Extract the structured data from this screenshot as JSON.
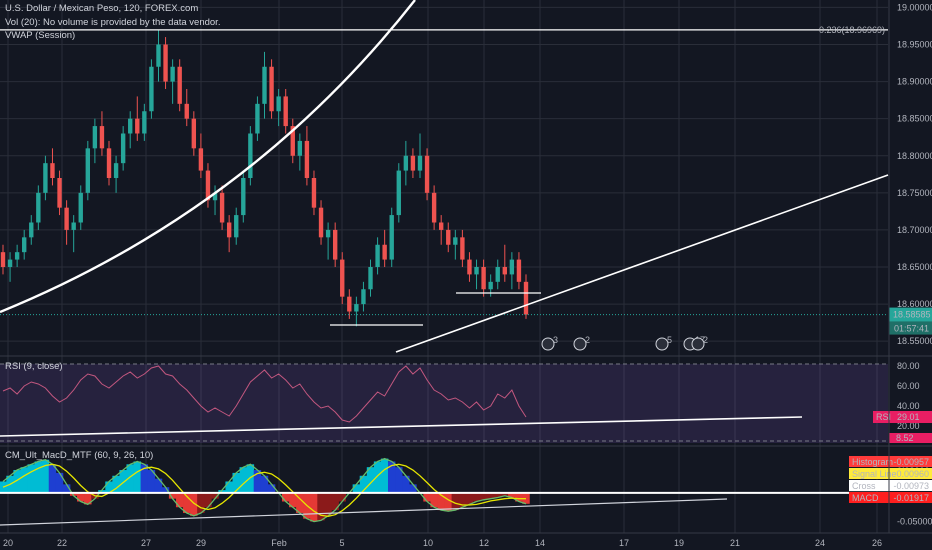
{
  "chart_data": [
    {
      "type": "candlestick",
      "title": "U.S. Dollar / Mexican Peso, 120, FOREX.com",
      "indicators": [
        "Vol (20): No volume is provided by the data vendor.",
        "VWAP (Session)"
      ],
      "y_ticks": [
        "19.00000",
        "18.95000",
        "18.90000",
        "18.85000",
        "18.80000",
        "18.75000",
        "18.70000",
        "18.65000",
        "18.60000",
        "18.55000"
      ],
      "ylim": [
        18.53,
        19.01
      ],
      "x_ticks": [
        "20",
        "22",
        "27",
        "29",
        "Feb",
        "5",
        "10",
        "12",
        "14",
        "17",
        "19",
        "21",
        "24",
        "26"
      ],
      "last_price": "18.58585",
      "countdown": "01:57:41",
      "fib_label": "0.236(18.96969)",
      "fib_level": 18.9697,
      "colors": {
        "up": "#26a69a",
        "down": "#ef5350",
        "bg": "#131722",
        "grid": "#2a2e39"
      },
      "ohlc": [
        [
          18.67,
          18.68,
          18.64,
          18.65
        ],
        [
          18.65,
          18.67,
          18.63,
          18.66
        ],
        [
          18.66,
          18.68,
          18.65,
          18.67
        ],
        [
          18.67,
          18.7,
          18.66,
          18.69
        ],
        [
          18.69,
          18.72,
          18.68,
          18.71
        ],
        [
          18.71,
          18.76,
          18.7,
          18.75
        ],
        [
          18.75,
          18.8,
          18.74,
          18.79
        ],
        [
          18.79,
          18.81,
          18.76,
          18.77
        ],
        [
          18.77,
          18.78,
          18.72,
          18.73
        ],
        [
          18.73,
          18.74,
          18.68,
          18.7
        ],
        [
          18.7,
          18.72,
          18.67,
          18.71
        ],
        [
          18.71,
          18.76,
          18.7,
          18.75
        ],
        [
          18.75,
          18.82,
          18.74,
          18.81
        ],
        [
          18.81,
          18.85,
          18.79,
          18.84
        ],
        [
          18.84,
          18.86,
          18.8,
          18.81
        ],
        [
          18.81,
          18.82,
          18.76,
          18.77
        ],
        [
          18.77,
          18.8,
          18.75,
          18.79
        ],
        [
          18.79,
          18.84,
          18.78,
          18.83
        ],
        [
          18.83,
          18.86,
          18.81,
          18.85
        ],
        [
          18.85,
          18.88,
          18.82,
          18.83
        ],
        [
          18.83,
          18.87,
          18.82,
          18.86
        ],
        [
          18.86,
          18.93,
          18.85,
          18.92
        ],
        [
          18.92,
          18.97,
          18.9,
          18.95
        ],
        [
          18.95,
          18.96,
          18.89,
          18.9
        ],
        [
          18.9,
          18.93,
          18.87,
          18.92
        ],
        [
          18.92,
          18.93,
          18.86,
          18.87
        ],
        [
          18.87,
          18.89,
          18.84,
          18.85
        ],
        [
          18.85,
          18.86,
          18.8,
          18.81
        ],
        [
          18.81,
          18.83,
          18.77,
          18.78
        ],
        [
          18.78,
          18.79,
          18.73,
          18.74
        ],
        [
          18.74,
          18.76,
          18.72,
          18.75
        ],
        [
          18.75,
          18.76,
          18.7,
          18.71
        ],
        [
          18.71,
          18.72,
          18.67,
          18.69
        ],
        [
          18.69,
          18.73,
          18.68,
          18.72
        ],
        [
          18.72,
          18.78,
          18.71,
          18.77
        ],
        [
          18.77,
          18.84,
          18.76,
          18.83
        ],
        [
          18.83,
          18.88,
          18.82,
          18.87
        ],
        [
          18.87,
          18.94,
          18.85,
          18.92
        ],
        [
          18.92,
          18.93,
          18.85,
          18.86
        ],
        [
          18.86,
          18.89,
          18.84,
          18.88
        ],
        [
          18.88,
          18.89,
          18.83,
          18.84
        ],
        [
          18.84,
          18.85,
          18.79,
          18.8
        ],
        [
          18.8,
          18.83,
          18.78,
          18.82
        ],
        [
          18.82,
          18.84,
          18.76,
          18.77
        ],
        [
          18.77,
          18.78,
          18.72,
          18.73
        ],
        [
          18.73,
          18.74,
          18.68,
          18.69
        ],
        [
          18.69,
          18.71,
          18.66,
          18.7
        ],
        [
          18.7,
          18.71,
          18.65,
          18.66
        ],
        [
          18.66,
          18.67,
          18.6,
          18.61
        ],
        [
          18.61,
          18.62,
          18.58,
          18.59
        ],
        [
          18.59,
          18.61,
          18.57,
          18.6
        ],
        [
          18.6,
          18.63,
          18.59,
          18.62
        ],
        [
          18.62,
          18.66,
          18.61,
          18.65
        ],
        [
          18.65,
          18.69,
          18.64,
          18.68
        ],
        [
          18.68,
          18.7,
          18.65,
          18.66
        ],
        [
          18.66,
          18.73,
          18.65,
          18.72
        ],
        [
          18.72,
          18.79,
          18.71,
          18.78
        ],
        [
          18.78,
          18.82,
          18.76,
          18.8
        ],
        [
          18.8,
          18.81,
          18.77,
          18.78
        ],
        [
          18.78,
          18.83,
          18.77,
          18.8
        ],
        [
          18.8,
          18.81,
          18.74,
          18.75
        ],
        [
          18.75,
          18.76,
          18.7,
          18.71
        ],
        [
          18.71,
          18.72,
          18.68,
          18.7
        ],
        [
          18.7,
          18.71,
          18.67,
          18.68
        ],
        [
          18.68,
          18.7,
          18.66,
          18.69
        ],
        [
          18.69,
          18.7,
          18.65,
          18.66
        ],
        [
          18.66,
          18.67,
          18.63,
          18.64
        ],
        [
          18.64,
          18.66,
          18.62,
          18.65
        ],
        [
          18.65,
          18.66,
          18.61,
          18.62
        ],
        [
          18.62,
          18.64,
          18.61,
          18.63
        ],
        [
          18.63,
          18.66,
          18.62,
          18.65
        ],
        [
          18.65,
          18.68,
          18.63,
          18.64
        ],
        [
          18.64,
          18.67,
          18.62,
          18.66
        ],
        [
          18.66,
          18.67,
          18.62,
          18.63
        ],
        [
          18.63,
          18.64,
          18.58,
          18.5859
        ]
      ]
    },
    {
      "type": "line",
      "title": "RSI (9, close)",
      "y_ticks": [
        "80.00",
        "60.00",
        "40.00",
        "20.00"
      ],
      "ylim": [
        3,
        88
      ],
      "rsi_value": "29.01",
      "rsi_badge": "RSI",
      "low_readout": "8.52",
      "color": "#c2577f",
      "band_color": "#7e57c2",
      "values": [
        55,
        58,
        52,
        60,
        64,
        62,
        58,
        50,
        44,
        48,
        56,
        66,
        72,
        70,
        62,
        58,
        64,
        70,
        74,
        68,
        72,
        78,
        80,
        72,
        70,
        62,
        56,
        48,
        40,
        34,
        38,
        34,
        30,
        40,
        52,
        64,
        70,
        76,
        68,
        72,
        66,
        58,
        62,
        52,
        44,
        38,
        40,
        34,
        26,
        24,
        30,
        38,
        46,
        54,
        50,
        62,
        74,
        80,
        72,
        78,
        66,
        56,
        52,
        46,
        48,
        44,
        38,
        44,
        36,
        40,
        52,
        48,
        56,
        40,
        29
      ]
    },
    {
      "type": "histogram",
      "title": "CM_Ult_MacD_MTF (60, 9, 26, 10)",
      "y_ticks": [
        "0.05000",
        "-0.05000"
      ],
      "ylim": [
        -0.07,
        0.075
      ],
      "legend_items": [
        {
          "name": "Histogram",
          "value": "-0.00957",
          "color": "#ff3b3b"
        },
        {
          "name": "Signal Line",
          "value": "-0.00960",
          "color": "#ffeb3b"
        },
        {
          "name": "Cross",
          "value": "-0.00973",
          "color": "#ffffff"
        },
        {
          "name": "MACD",
          "value": "-0.01917",
          "color": "#ff1f1f"
        }
      ],
      "macd": [
        0.02,
        0.03,
        0.04,
        0.045,
        0.05,
        0.055,
        0.058,
        0.05,
        0.035,
        0.015,
        -0.005,
        -0.015,
        -0.02,
        -0.01,
        0.005,
        0.02,
        0.03,
        0.04,
        0.05,
        0.055,
        0.05,
        0.04,
        0.025,
        0.01,
        -0.01,
        -0.025,
        -0.035,
        -0.04,
        -0.035,
        -0.025,
        -0.01,
        0.005,
        0.02,
        0.035,
        0.045,
        0.05,
        0.04,
        0.03,
        0.015,
        0.0,
        -0.015,
        -0.025,
        -0.035,
        -0.045,
        -0.05,
        -0.048,
        -0.04,
        -0.03,
        -0.015,
        0.0,
        0.015,
        0.03,
        0.045,
        0.055,
        0.06,
        0.055,
        0.045,
        0.03,
        0.015,
        0.0,
        -0.015,
        -0.025,
        -0.03,
        -0.032,
        -0.03,
        -0.025,
        -0.02,
        -0.015,
        -0.012,
        -0.01,
        -0.008,
        -0.005,
        -0.008,
        -0.015,
        -0.019
      ],
      "signal": [
        0.01,
        0.015,
        0.022,
        0.03,
        0.037,
        0.043,
        0.048,
        0.05,
        0.047,
        0.038,
        0.026,
        0.013,
        0.002,
        -0.005,
        -0.006,
        0.0,
        0.008,
        0.018,
        0.028,
        0.037,
        0.043,
        0.045,
        0.042,
        0.034,
        0.022,
        0.008,
        -0.006,
        -0.018,
        -0.026,
        -0.029,
        -0.026,
        -0.018,
        -0.008,
        0.004,
        0.016,
        0.027,
        0.034,
        0.036,
        0.033,
        0.025,
        0.014,
        0.002,
        -0.01,
        -0.022,
        -0.032,
        -0.039,
        -0.041,
        -0.038,
        -0.031,
        -0.021,
        -0.009,
        0.004,
        0.017,
        0.03,
        0.041,
        0.048,
        0.05,
        0.047,
        0.04,
        0.03,
        0.018,
        0.006,
        -0.004,
        -0.012,
        -0.018,
        -0.021,
        -0.021,
        -0.02,
        -0.017,
        -0.014,
        -0.012,
        -0.01,
        -0.009,
        -0.01,
        -0.01
      ],
      "colors": {
        "pos_up": "#00bcd4",
        "pos_down": "#1e3fd1",
        "neg_down": "#e53935",
        "neg_up": "#8b1a1a",
        "macd": "#66bb6a",
        "signal": "#e6e600"
      }
    }
  ],
  "events": [
    "3",
    "2",
    "5",
    "17",
    "2"
  ]
}
